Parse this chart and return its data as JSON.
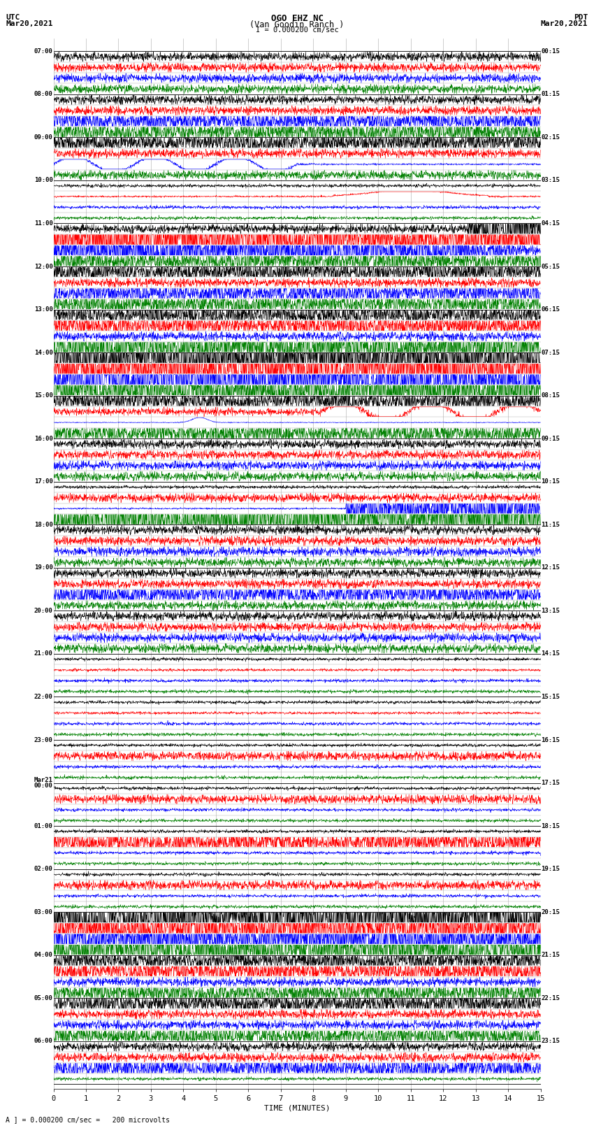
{
  "title_line1": "OGO EHZ NC",
  "title_line2": "(Van Goodin Ranch )",
  "title_line3": "I = 0.000200 cm/sec",
  "left_header_line1": "UTC",
  "left_header_line2": "Mar20,2021",
  "right_header_line1": "PDT",
  "right_header_line2": "Mar20,2021",
  "xlabel": "TIME (MINUTES)",
  "footer": "A ] = 0.000200 cm/sec =   200 microvolts",
  "utc_labels": [
    "07:00",
    "08:00",
    "09:00",
    "10:00",
    "11:00",
    "12:00",
    "13:00",
    "14:00",
    "15:00",
    "16:00",
    "17:00",
    "18:00",
    "19:00",
    "20:00",
    "21:00",
    "22:00",
    "23:00",
    "Mar21\n00:00",
    "01:00",
    "02:00",
    "03:00",
    "04:00",
    "05:00",
    "06:00"
  ],
  "pdt_labels": [
    "00:15",
    "01:15",
    "02:15",
    "03:15",
    "04:15",
    "05:15",
    "06:15",
    "07:15",
    "08:15",
    "09:15",
    "10:15",
    "11:15",
    "12:15",
    "13:15",
    "14:15",
    "15:15",
    "16:15",
    "17:15",
    "18:15",
    "19:15",
    "20:15",
    "21:15",
    "22:15",
    "23:15"
  ],
  "trace_colors": [
    "black",
    "red",
    "blue",
    "green"
  ],
  "n_hours": 24,
  "traces_per_hour": 4,
  "xmin": 0,
  "xmax": 15,
  "bg_color": "#ffffff",
  "grid_color": "#aaaaaa",
  "seed": 12345,
  "noise_tiny": 0.018,
  "noise_small": 0.05,
  "noise_medium": 0.12,
  "noise_large": 0.3,
  "noise_xlarge": 0.55
}
